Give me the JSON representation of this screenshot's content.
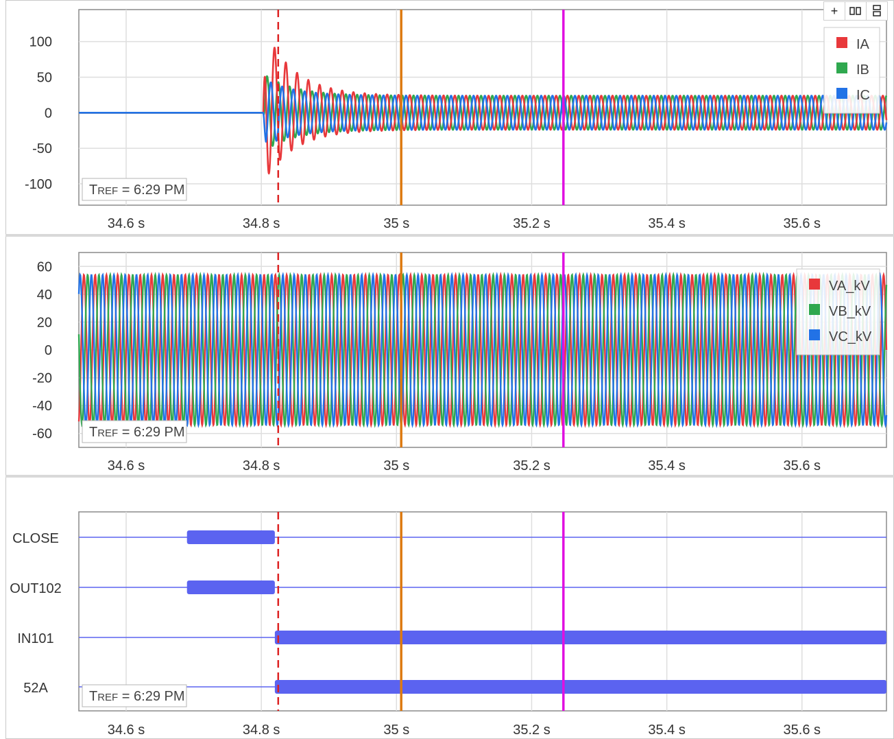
{
  "toolbar": {
    "add_icon": "plus-icon",
    "columns_icon": "split-columns-icon",
    "rows_icon": "split-rows-icon"
  },
  "markers": [
    {
      "name": "trigger",
      "x": 34.825,
      "color": "#dd2222",
      "style": "dashed"
    },
    {
      "name": "cursor-a",
      "x": 35.007,
      "color": "#dd7a11",
      "style": "solid"
    },
    {
      "name": "cursor-b",
      "x": 35.247,
      "color": "#e010e0",
      "style": "solid"
    }
  ],
  "chart_data": [
    {
      "type": "line",
      "name": "currents",
      "xlim": [
        34.53,
        35.725
      ],
      "xticks": [
        34.6,
        34.8,
        35.0,
        35.2,
        35.4,
        35.6
      ],
      "xtick_labels": [
        "34.6 s",
        "34.8 s",
        "35 s",
        "35.2 s",
        "35.4 s",
        "35.6 s"
      ],
      "ylim": [
        -130,
        145
      ],
      "yticks": [
        100,
        50,
        0,
        -50,
        -100
      ],
      "ytick_labels": [
        "100",
        "50",
        "0",
        "-50",
        "-100"
      ],
      "grid": true,
      "legend_position": "top-right",
      "tref_label": "TREF = 6:29 PM",
      "description_of_waveform": {
        "frequency_hz": 60,
        "zero_before_s": 34.8,
        "onset_s": 34.803,
        "steady_amplitude": 24,
        "dc_offset_decay_s": 0.045
      },
      "series": [
        {
          "name": "IA",
          "color": "#e8383b",
          "peak_after_onset": 110,
          "phase_deg": 0
        },
        {
          "name": "IB",
          "color": "#2fa84f",
          "peak_after_onset": 55,
          "phase_deg": -120
        },
        {
          "name": "IC",
          "color": "#2272e6",
          "peak_after_onset": 48,
          "phase_deg": 120
        }
      ]
    },
    {
      "type": "line",
      "name": "voltages",
      "xlim": [
        34.53,
        35.725
      ],
      "xticks": [
        34.6,
        34.8,
        35.0,
        35.2,
        35.4,
        35.6
      ],
      "xtick_labels": [
        "34.6 s",
        "34.8 s",
        "35 s",
        "35.2 s",
        "35.4 s",
        "35.6 s"
      ],
      "ylim": [
        -70,
        70
      ],
      "yticks": [
        60,
        40,
        20,
        0,
        -20,
        -40,
        -60
      ],
      "ytick_labels": [
        "60",
        "40",
        "20",
        "0",
        "-20",
        "-40",
        "-60"
      ],
      "grid": true,
      "legend_position": "top-right",
      "tref_label": "TREF = 6:29 PM",
      "frequency_hz": 60,
      "series": [
        {
          "name": "VA_kV",
          "color": "#e8383b",
          "amplitude": 54,
          "phase_deg": 0
        },
        {
          "name": "VB_kV",
          "color": "#2fa84f",
          "amplitude": 54,
          "phase_deg": -120
        },
        {
          "name": "VC_kV",
          "color": "#2272e6",
          "amplitude": 54,
          "phase_deg": 120
        }
      ]
    },
    {
      "type": "digital",
      "name": "digital-channels",
      "xlim": [
        34.53,
        35.725
      ],
      "xticks": [
        34.6,
        34.8,
        35.0,
        35.2,
        35.4,
        35.6
      ],
      "xtick_labels": [
        "34.6 s",
        "34.8 s",
        "35 s",
        "35.2 s",
        "35.4 s",
        "35.6 s"
      ],
      "grid": true,
      "tref_label": "TREF = 6:29 PM",
      "color": "#5b63f0",
      "channels": [
        {
          "name": "CLOSE",
          "asserted": [
            [
              34.69,
              34.82
            ]
          ]
        },
        {
          "name": "OUT102",
          "asserted": [
            [
              34.69,
              34.82
            ]
          ]
        },
        {
          "name": "IN101",
          "asserted": [
            [
              34.82,
              35.725
            ]
          ]
        },
        {
          "name": "52A",
          "asserted": [
            [
              34.82,
              35.725
            ]
          ]
        }
      ]
    }
  ]
}
